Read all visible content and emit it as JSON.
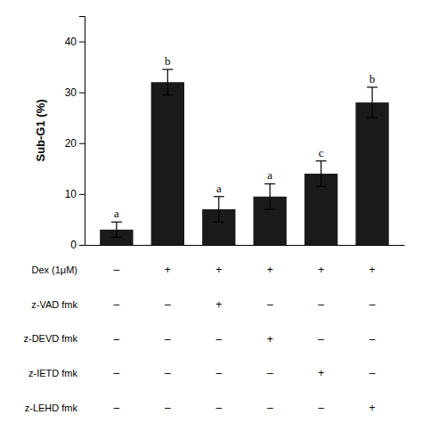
{
  "chart_data": {
    "type": "bar",
    "categories": [
      null,
      null,
      null,
      null,
      null,
      null
    ],
    "values": [
      3.0,
      32.0,
      7.0,
      9.5,
      14.0,
      28.0
    ],
    "errors": [
      1.5,
      2.5,
      2.5,
      2.5,
      2.5,
      3.0
    ],
    "color": "#1a1a1a",
    "ylabel": "Sub-G1 (%)",
    "ylim": [
      0,
      45
    ],
    "yticks": [
      0,
      10,
      20,
      30,
      40
    ],
    "grid": false,
    "annotations": [
      "a",
      "b",
      "a",
      "a",
      "c",
      "b"
    ],
    "table_rows": [
      "Dex (1μM)",
      "z-VAD fmk",
      "z-DEVD fmk",
      "z-IETD fmk",
      "z-LEHD fmk"
    ],
    "table_data": [
      [
        "–",
        "+",
        "+",
        "+",
        "+",
        "+"
      ],
      [
        "–",
        "–",
        "+",
        "–",
        "–",
        "–"
      ],
      [
        "–",
        "–",
        "–",
        "+",
        "–",
        "–"
      ],
      [
        "–",
        "–",
        "–",
        "–",
        "+",
        "–"
      ],
      [
        "–",
        "–",
        "–",
        "–",
        "–",
        "+"
      ]
    ]
  }
}
